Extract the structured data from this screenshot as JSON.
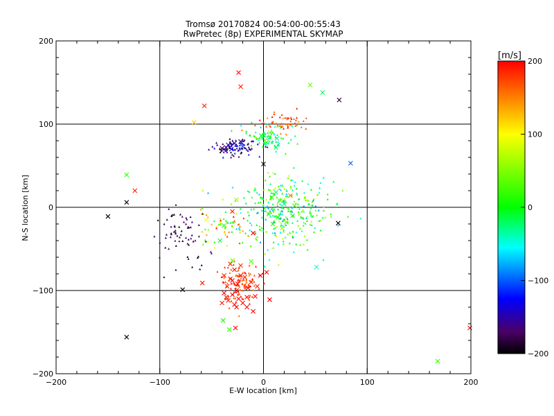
{
  "chart_data": {
    "type": "scatter",
    "title": "Tromsø 20170824 00:54:00-00:55:43",
    "subtitle": "RwPretec (8p) EXPERIMENTAL SKYMAP",
    "xlabel": "E-W location [km]",
    "ylabel": "N-S location [km]",
    "xlim": [
      -200,
      200
    ],
    "ylim": [
      -200,
      200
    ],
    "xticks": [
      -200,
      -100,
      0,
      100,
      200
    ],
    "yticks": [
      -200,
      -100,
      0,
      100,
      200
    ],
    "xtick_labels": [
      "−200",
      "−100",
      "0",
      "100",
      "200"
    ],
    "ytick_labels": [
      "−200",
      "−100",
      "0",
      "100",
      "200"
    ],
    "grid": true,
    "grid_lines": [
      -100,
      0,
      100
    ],
    "colorbar": {
      "label": "[m/s]",
      "range": [
        -200,
        200
      ],
      "ticks": [
        -200,
        -100,
        0,
        100,
        200
      ],
      "tick_labels": [
        "−200",
        "−100",
        "0",
        "100",
        "200"
      ],
      "colormap": "rainbow: black → purple → blue → cyan → green → yellow → red"
    },
    "colormap_stops": [
      {
        "v": -200,
        "color": "#000000"
      },
      {
        "v": -170,
        "color": "#4a0066"
      },
      {
        "v": -125,
        "color": "#0000ff"
      },
      {
        "v": -55,
        "color": "#00ffff"
      },
      {
        "v": 0,
        "color": "#00ff00"
      },
      {
        "v": 100,
        "color": "#ffff00"
      },
      {
        "v": 150,
        "color": "#ff8000"
      },
      {
        "v": 200,
        "color": "#ff0000"
      }
    ],
    "series": [
      {
        "marker": "x",
        "points": [
          [
            -24,
            162
          ],
          [
            -22,
            145
          ],
          [
            -57,
            122
          ],
          [
            -67,
            102
          ],
          [
            45,
            147
          ],
          [
            57,
            138
          ],
          [
            73,
            129
          ],
          [
            84,
            53
          ],
          [
            0,
            52
          ],
          [
            -132,
            39
          ],
          [
            -124,
            20
          ],
          [
            -132,
            6
          ],
          [
            -150,
            -11
          ],
          [
            72,
            -19
          ],
          [
            -55,
            -15
          ],
          [
            51,
            -72
          ],
          [
            -78,
            -99
          ],
          [
            -59,
            -91
          ],
          [
            -132,
            -156
          ],
          [
            -39,
            -136
          ],
          [
            -33,
            -147
          ],
          [
            -27,
            -145
          ],
          [
            -10,
            -125
          ],
          [
            6,
            -111
          ],
          [
            199,
            -145
          ],
          [
            168,
            -185
          ],
          [
            -34,
            75
          ],
          [
            -28,
            77
          ],
          [
            -22,
            79
          ],
          [
            -36,
            72
          ],
          [
            -31,
            70
          ],
          [
            -40,
            71
          ],
          [
            -20,
            73
          ],
          [
            12,
            72
          ],
          [
            13,
            83
          ],
          [
            6,
            90
          ],
          [
            -2,
            86
          ],
          [
            3,
            78
          ],
          [
            -32,
            -68
          ],
          [
            -28,
            -75
          ],
          [
            -22,
            -82
          ],
          [
            -30,
            -88
          ],
          [
            -35,
            -95
          ],
          [
            -25,
            -92
          ],
          [
            -38,
            -103
          ],
          [
            -30,
            -105
          ],
          [
            -24,
            -110
          ],
          [
            -34,
            -112
          ],
          [
            -28,
            -117
          ],
          [
            -20,
            -115
          ],
          [
            -36,
            -108
          ],
          [
            -26,
            -100
          ],
          [
            -32,
            -86
          ],
          [
            -15,
            -97
          ],
          [
            -18,
            -84
          ],
          [
            -22,
            -70
          ],
          [
            -12,
            -90
          ],
          [
            -6,
            -95
          ],
          [
            -3,
            -82
          ],
          [
            3,
            -78
          ],
          [
            -8,
            -107
          ],
          [
            -16,
            -120
          ],
          [
            -12,
            -65
          ],
          [
            -30,
            -64
          ],
          [
            -38,
            -82
          ],
          [
            -26,
            -120
          ],
          [
            -40,
            -115
          ],
          [
            -16,
            -108
          ],
          [
            -26,
            9
          ],
          [
            -30,
            -5
          ],
          [
            -38,
            -22
          ],
          [
            -42,
            -40
          ],
          [
            -10,
            -31
          ],
          [
            8,
            12
          ],
          [
            16,
            8
          ],
          [
            12,
            18
          ],
          [
            20,
            4
          ],
          [
            5,
            -8
          ],
          [
            14,
            -12
          ],
          [
            22,
            -18
          ],
          [
            28,
            -10
          ],
          [
            18,
            -25
          ],
          [
            9,
            -20
          ],
          [
            26,
            14
          ],
          [
            30,
            2
          ]
        ],
        "values": [
          200,
          190,
          190,
          120,
          40,
          -20,
          -180,
          -100,
          -200,
          20,
          190,
          -200,
          -200,
          -200,
          100,
          -50,
          -200,
          190,
          -200,
          10,
          20,
          200,
          200,
          200,
          200,
          20,
          -150,
          -140,
          -145,
          -160,
          -130,
          -170,
          -110,
          -20,
          -30,
          60,
          -10,
          10,
          190,
          200,
          200,
          200,
          190,
          200,
          200,
          200,
          200,
          190,
          200,
          200,
          190,
          200,
          190,
          200,
          190,
          180,
          190,
          190,
          200,
          200,
          200,
          200,
          30,
          40,
          190,
          200,
          190,
          200,
          60,
          190,
          10,
          -10,
          200,
          10,
          30,
          -20,
          -40,
          20,
          0,
          40,
          -10,
          60,
          10,
          150,
          20
        ]
      }
    ],
    "clusters_dots": [
      {
        "center": [
          -28,
          72
        ],
        "spread": [
          12,
          5
        ],
        "n": 90,
        "value_range": [
          -200,
          -110
        ]
      },
      {
        "center": [
          4,
          84
        ],
        "spread": [
          10,
          7
        ],
        "n": 80,
        "value_range": [
          -70,
          40
        ]
      },
      {
        "center": [
          20,
          102
        ],
        "spread": [
          12,
          6
        ],
        "n": 55,
        "value_range": [
          140,
          200
        ]
      },
      {
        "center": [
          15,
          -5
        ],
        "spread": [
          24,
          22
        ],
        "n": 330,
        "value_range": [
          -90,
          80
        ]
      },
      {
        "center": [
          -80,
          -30
        ],
        "spread": [
          14,
          16
        ],
        "n": 70,
        "value_range": [
          -200,
          -160
        ]
      },
      {
        "center": [
          -22,
          -92
        ],
        "spread": [
          10,
          12
        ],
        "n": 110,
        "value_range": [
          150,
          200
        ]
      },
      {
        "center": [
          -40,
          -22
        ],
        "spread": [
          12,
          12
        ],
        "n": 60,
        "value_range": [
          -20,
          200
        ]
      }
    ]
  }
}
